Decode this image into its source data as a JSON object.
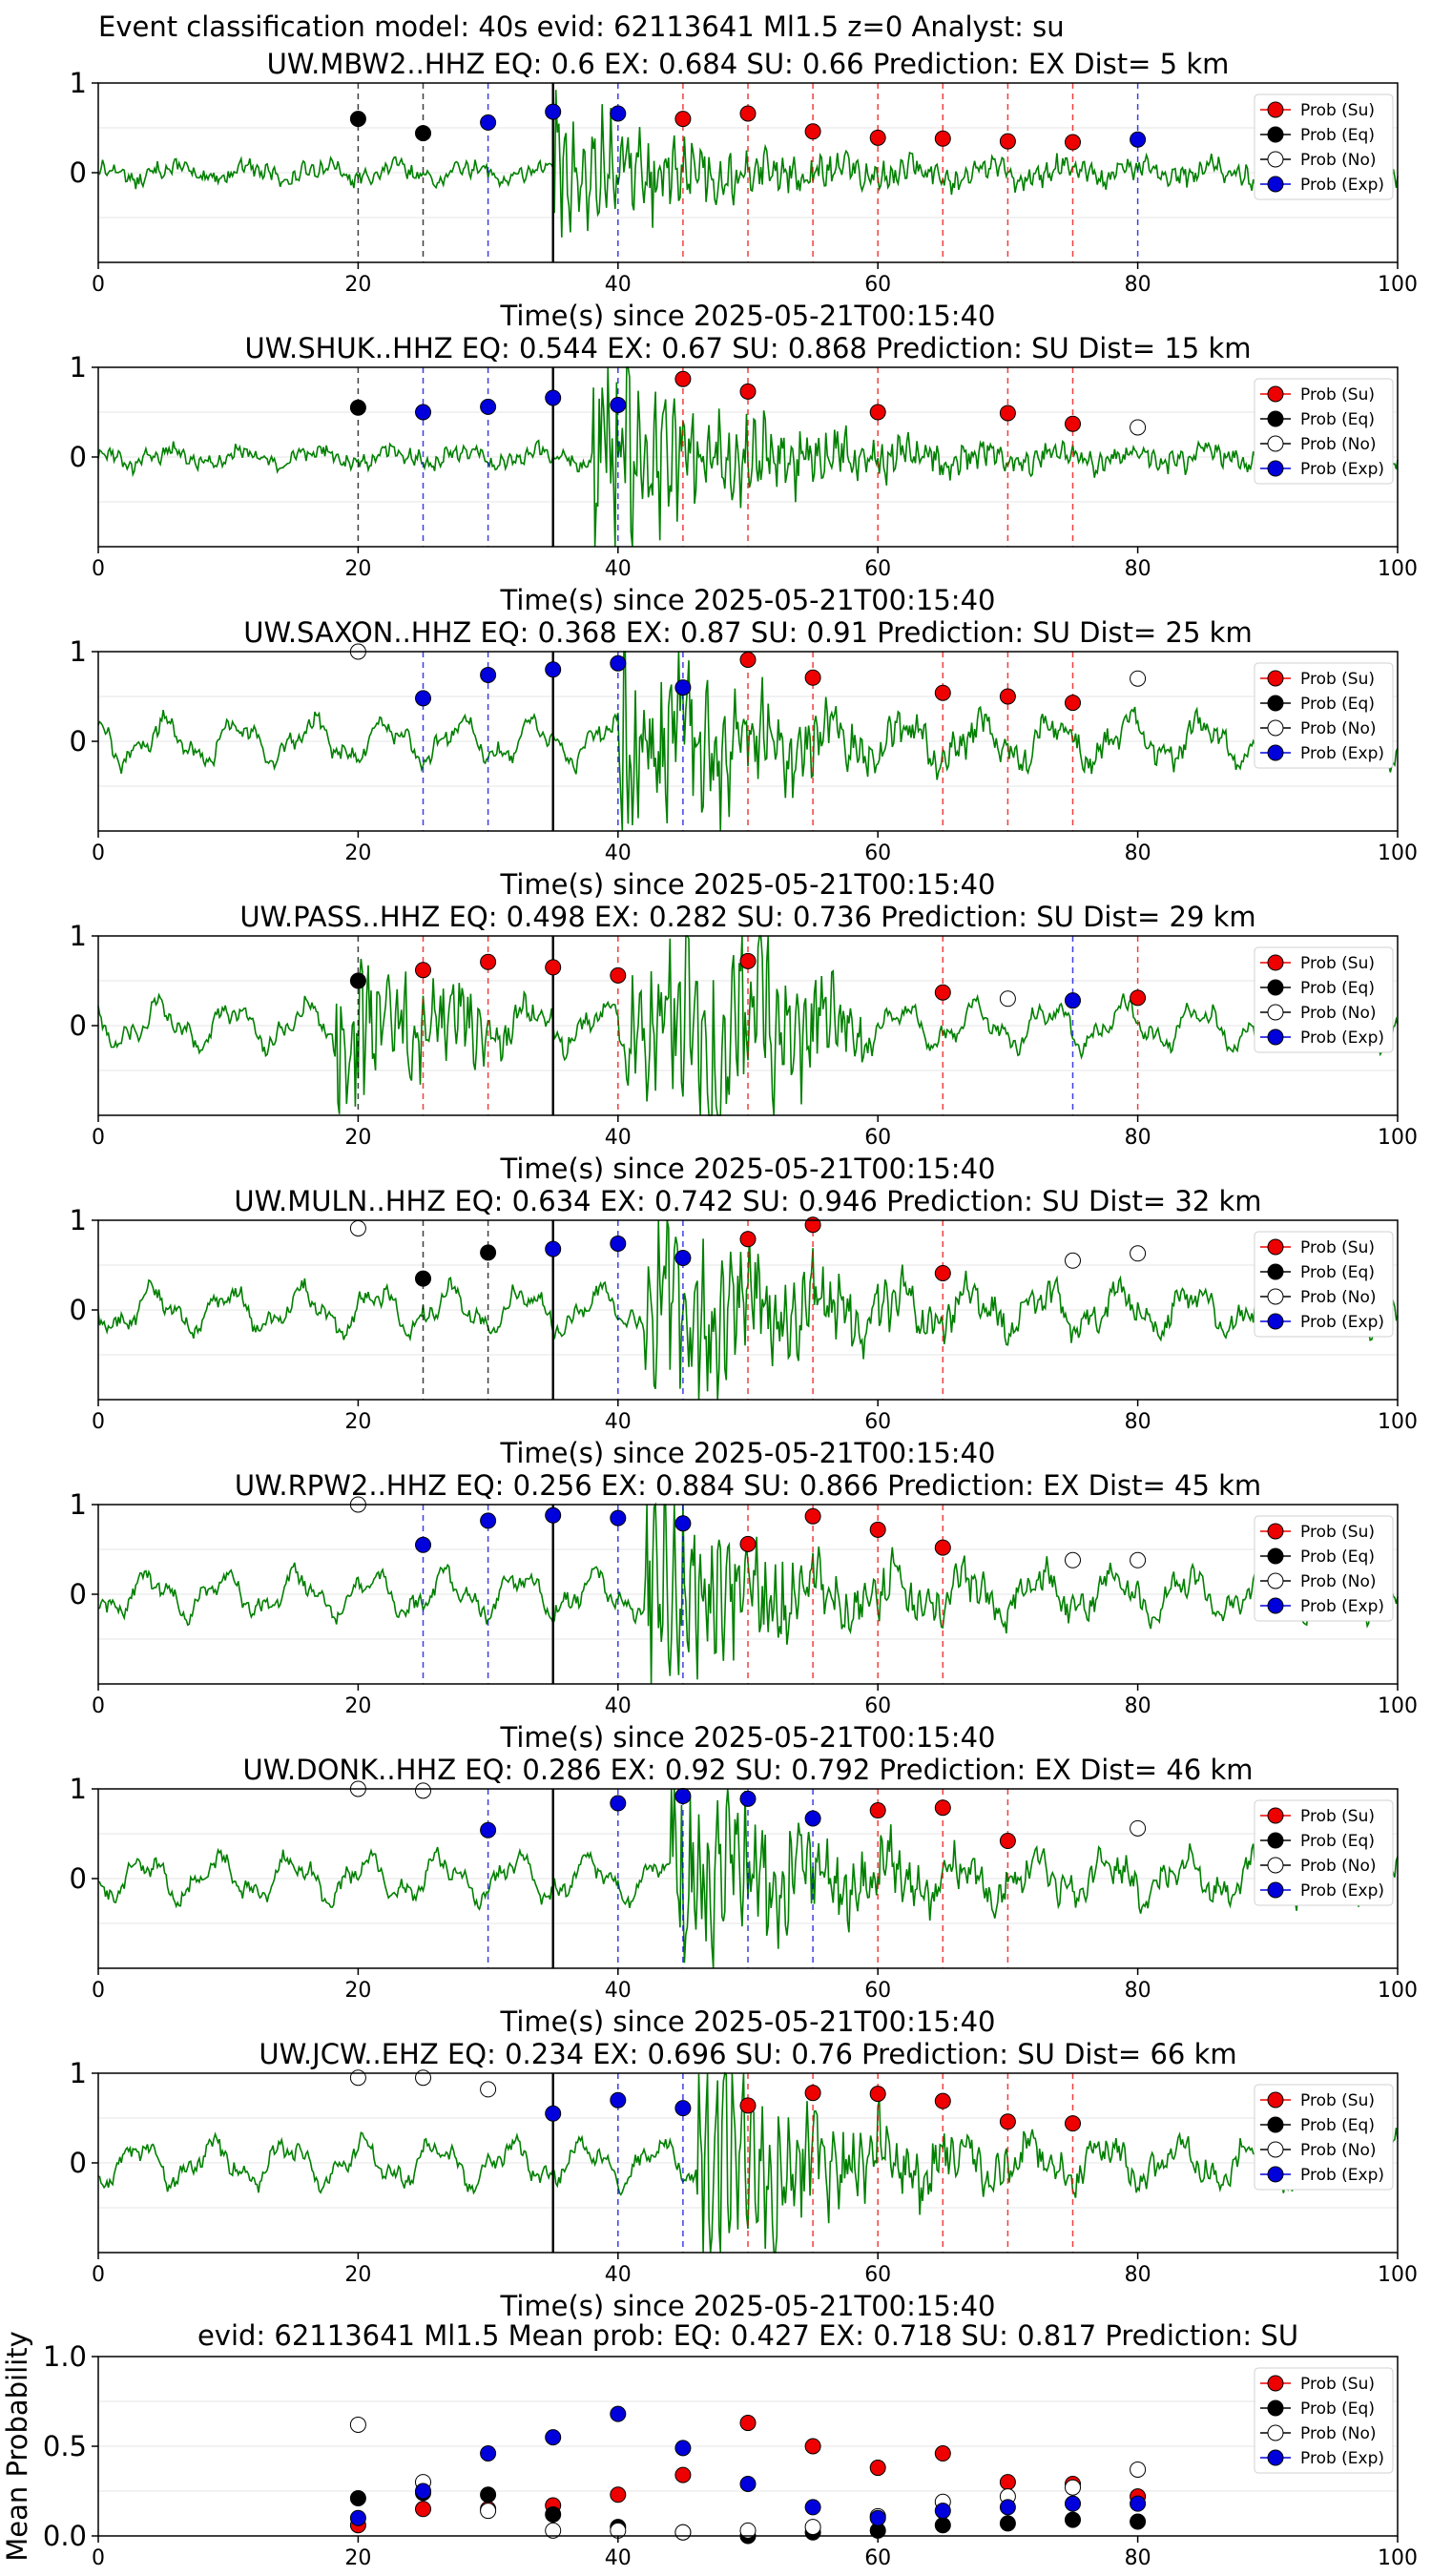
{
  "figure": {
    "title": "Event classification model: 40s evid: 62113641 Ml1.5 z=0 Analyst: su"
  },
  "legend_labels": [
    "Prob (Su)",
    "Prob (Eq)",
    "Prob (No)",
    "Prob (Exp)"
  ],
  "colors": {
    "su": "#ee0000",
    "eq": "#000000",
    "no": "#ffffff",
    "exp": "#0000dd",
    "wave": "#008000"
  },
  "chart_data": [
    {
      "type": "scatter",
      "title": "UW.MBW2..HHZ   EQ: 0.6  EX: 0.684  SU: 0.66   Prediction: EX    Dist= 5 km",
      "xlabel": "Time(s) since 2025-05-21T00:15:40",
      "xlim": [
        0,
        100
      ],
      "ylim": [
        -1,
        1
      ],
      "xticks": [
        "0",
        "20",
        "40",
        "60",
        "80",
        "100"
      ],
      "yticks": [
        "1",
        "0"
      ],
      "origin_time": 35,
      "onset": 35,
      "amp": 0.55,
      "windows": [
        {
          "t": 20,
          "cls": "eq",
          "p": 0.6
        },
        {
          "t": 25,
          "cls": "eq",
          "p": 0.44
        },
        {
          "t": 30,
          "cls": "exp",
          "p": 0.56
        },
        {
          "t": 35,
          "cls": "exp",
          "p": 0.68
        },
        {
          "t": 40,
          "cls": "exp",
          "p": 0.66
        },
        {
          "t": 45,
          "cls": "su",
          "p": 0.6
        },
        {
          "t": 50,
          "cls": "su",
          "p": 0.66
        },
        {
          "t": 55,
          "cls": "su",
          "p": 0.46
        },
        {
          "t": 60,
          "cls": "su",
          "p": 0.39
        },
        {
          "t": 65,
          "cls": "su",
          "p": 0.38
        },
        {
          "t": 70,
          "cls": "su",
          "p": 0.35
        },
        {
          "t": 75,
          "cls": "su",
          "p": 0.34
        },
        {
          "t": 80,
          "cls": "exp",
          "p": 0.37
        }
      ]
    },
    {
      "type": "scatter",
      "title": "UW.SHUK..HHZ   EQ: 0.544  EX: 0.67  SU: 0.868   Prediction: SU    Dist= 15 km",
      "xlabel": "Time(s) since 2025-05-21T00:15:40",
      "xlim": [
        0,
        100
      ],
      "ylim": [
        -1,
        1
      ],
      "xticks": [
        "0",
        "20",
        "40",
        "60",
        "80",
        "100"
      ],
      "yticks": [
        "1",
        "0"
      ],
      "origin_time": 35,
      "onset": 38,
      "amp": 0.9,
      "windows": [
        {
          "t": 20,
          "cls": "eq",
          "p": 0.55
        },
        {
          "t": 25,
          "cls": "exp",
          "p": 0.5
        },
        {
          "t": 30,
          "cls": "exp",
          "p": 0.56
        },
        {
          "t": 35,
          "cls": "exp",
          "p": 0.66
        },
        {
          "t": 40,
          "cls": "exp",
          "p": 0.58
        },
        {
          "t": 45,
          "cls": "su",
          "p": 0.87
        },
        {
          "t": 50,
          "cls": "su",
          "p": 0.73
        },
        {
          "t": 60,
          "cls": "su",
          "p": 0.5
        },
        {
          "t": 70,
          "cls": "su",
          "p": 0.49
        },
        {
          "t": 75,
          "cls": "su",
          "p": 0.37
        },
        {
          "t": 80,
          "cls": "no",
          "p": 0.33
        }
      ]
    },
    {
      "type": "scatter",
      "title": "UW.SAXON..HHZ   EQ: 0.368  EX: 0.87  SU: 0.91   Prediction: SU    Dist= 25 km",
      "xlabel": "Time(s) since 2025-05-21T00:15:40",
      "xlim": [
        0,
        100
      ],
      "ylim": [
        -1,
        1
      ],
      "xticks": [
        "0",
        "20",
        "40",
        "60",
        "80",
        "100"
      ],
      "yticks": [
        "1",
        "0"
      ],
      "origin_time": 35,
      "onset": 40,
      "amp": 0.9,
      "windows": [
        {
          "t": 20,
          "cls": "no",
          "p": 1.0
        },
        {
          "t": 25,
          "cls": "exp",
          "p": 0.48
        },
        {
          "t": 30,
          "cls": "exp",
          "p": 0.74
        },
        {
          "t": 35,
          "cls": "exp",
          "p": 0.8
        },
        {
          "t": 40,
          "cls": "exp",
          "p": 0.87
        },
        {
          "t": 45,
          "cls": "exp",
          "p": 0.6
        },
        {
          "t": 50,
          "cls": "su",
          "p": 0.91
        },
        {
          "t": 55,
          "cls": "su",
          "p": 0.71
        },
        {
          "t": 65,
          "cls": "su",
          "p": 0.54
        },
        {
          "t": 70,
          "cls": "su",
          "p": 0.5
        },
        {
          "t": 75,
          "cls": "su",
          "p": 0.43
        },
        {
          "t": 80,
          "cls": "no",
          "p": 0.7
        }
      ]
    },
    {
      "type": "scatter",
      "title": "UW.PASS..HHZ   EQ: 0.498  EX: 0.282  SU: 0.736   Prediction: SU    Dist= 29 km",
      "xlabel": "Time(s) since 2025-05-21T00:15:40",
      "xlim": [
        0,
        100
      ],
      "ylim": [
        -1,
        1
      ],
      "xticks": [
        "0",
        "20",
        "40",
        "60",
        "80",
        "100"
      ],
      "yticks": [
        "1",
        "0"
      ],
      "origin_time": 35,
      "onset": 18,
      "amp": 0.85,
      "windows": [
        {
          "t": 20,
          "cls": "eq",
          "p": 0.5
        },
        {
          "t": 25,
          "cls": "su",
          "p": 0.62
        },
        {
          "t": 30,
          "cls": "su",
          "p": 0.71
        },
        {
          "t": 35,
          "cls": "su",
          "p": 0.65
        },
        {
          "t": 40,
          "cls": "su",
          "p": 0.56
        },
        {
          "t": 50,
          "cls": "su",
          "p": 0.72
        },
        {
          "t": 65,
          "cls": "su",
          "p": 0.37
        },
        {
          "t": 70,
          "cls": "no",
          "p": 0.3
        },
        {
          "t": 75,
          "cls": "exp",
          "p": 0.28
        },
        {
          "t": 80,
          "cls": "su",
          "p": 0.31
        }
      ]
    },
    {
      "type": "scatter",
      "title": "UW.MULN..HHZ   EQ: 0.634  EX: 0.742  SU: 0.946   Prediction: SU    Dist= 32 km",
      "xlabel": "Time(s) since 2025-05-21T00:15:40",
      "xlim": [
        0,
        100
      ],
      "ylim": [
        -1,
        1
      ],
      "xticks": [
        "0",
        "20",
        "40",
        "60",
        "80",
        "100"
      ],
      "yticks": [
        "1",
        "0"
      ],
      "origin_time": 35,
      "onset": 42,
      "amp": 0.85,
      "windows": [
        {
          "t": 20,
          "cls": "no",
          "p": 0.91
        },
        {
          "t": 25,
          "cls": "eq",
          "p": 0.35
        },
        {
          "t": 30,
          "cls": "eq",
          "p": 0.64
        },
        {
          "t": 35,
          "cls": "exp",
          "p": 0.68
        },
        {
          "t": 40,
          "cls": "exp",
          "p": 0.74
        },
        {
          "t": 45,
          "cls": "exp",
          "p": 0.58
        },
        {
          "t": 50,
          "cls": "su",
          "p": 0.79
        },
        {
          "t": 55,
          "cls": "su",
          "p": 0.95
        },
        {
          "t": 65,
          "cls": "su",
          "p": 0.41
        },
        {
          "t": 75,
          "cls": "no",
          "p": 0.55
        },
        {
          "t": 80,
          "cls": "no",
          "p": 0.63
        }
      ]
    },
    {
      "type": "scatter",
      "title": "UW.RPW2..HHZ   EQ: 0.256  EX: 0.884  SU: 0.866   Prediction: EX    Dist= 45 km",
      "xlabel": "Time(s) since 2025-05-21T00:15:40",
      "xlim": [
        0,
        100
      ],
      "ylim": [
        -1,
        1
      ],
      "xticks": [
        "0",
        "20",
        "40",
        "60",
        "80",
        "100"
      ],
      "yticks": [
        "1",
        "0"
      ],
      "origin_time": 35,
      "onset": 42,
      "amp": 0.9,
      "windows": [
        {
          "t": 20,
          "cls": "no",
          "p": 1.0
        },
        {
          "t": 25,
          "cls": "exp",
          "p": 0.55
        },
        {
          "t": 30,
          "cls": "exp",
          "p": 0.82
        },
        {
          "t": 35,
          "cls": "exp",
          "p": 0.88
        },
        {
          "t": 40,
          "cls": "exp",
          "p": 0.85
        },
        {
          "t": 45,
          "cls": "exp",
          "p": 0.79
        },
        {
          "t": 50,
          "cls": "su",
          "p": 0.56
        },
        {
          "t": 55,
          "cls": "su",
          "p": 0.87
        },
        {
          "t": 60,
          "cls": "su",
          "p": 0.72
        },
        {
          "t": 65,
          "cls": "su",
          "p": 0.52
        },
        {
          "t": 75,
          "cls": "no",
          "p": 0.38
        },
        {
          "t": 80,
          "cls": "no",
          "p": 0.38
        }
      ]
    },
    {
      "type": "scatter",
      "title": "UW.DONK..HHZ   EQ: 0.286  EX: 0.92  SU: 0.792   Prediction: EX    Dist= 46 km",
      "xlabel": "Time(s) since 2025-05-21T00:15:40",
      "xlim": [
        0,
        100
      ],
      "ylim": [
        -1,
        1
      ],
      "xticks": [
        "0",
        "20",
        "40",
        "60",
        "80",
        "100"
      ],
      "yticks": [
        "1",
        "0"
      ],
      "origin_time": 35,
      "onset": 44,
      "amp": 0.85,
      "windows": [
        {
          "t": 20,
          "cls": "no",
          "p": 1.0
        },
        {
          "t": 25,
          "cls": "no",
          "p": 0.98
        },
        {
          "t": 30,
          "cls": "exp",
          "p": 0.54
        },
        {
          "t": 40,
          "cls": "exp",
          "p": 0.84
        },
        {
          "t": 45,
          "cls": "exp",
          "p": 0.92
        },
        {
          "t": 50,
          "cls": "exp",
          "p": 0.89
        },
        {
          "t": 55,
          "cls": "exp",
          "p": 0.67
        },
        {
          "t": 60,
          "cls": "su",
          "p": 0.76
        },
        {
          "t": 65,
          "cls": "su",
          "p": 0.79
        },
        {
          "t": 70,
          "cls": "su",
          "p": 0.42
        },
        {
          "t": 80,
          "cls": "no",
          "p": 0.56
        }
      ]
    },
    {
      "type": "scatter",
      "title": "UW.JCW..EHZ   EQ: 0.234  EX: 0.696  SU: 0.76   Prediction: SU    Dist= 66 km",
      "xlabel": "Time(s) since 2025-05-21T00:15:40",
      "xlim": [
        0,
        100
      ],
      "ylim": [
        -1,
        1
      ],
      "xticks": [
        "0",
        "20",
        "40",
        "60",
        "80",
        "100"
      ],
      "yticks": [
        "1",
        "0"
      ],
      "origin_time": 35,
      "onset": 46,
      "amp": 0.9,
      "windows": [
        {
          "t": 20,
          "cls": "no",
          "p": 0.95
        },
        {
          "t": 25,
          "cls": "no",
          "p": 0.95
        },
        {
          "t": 30,
          "cls": "no",
          "p": 0.82
        },
        {
          "t": 35,
          "cls": "exp",
          "p": 0.55
        },
        {
          "t": 40,
          "cls": "exp",
          "p": 0.7
        },
        {
          "t": 45,
          "cls": "exp",
          "p": 0.61
        },
        {
          "t": 50,
          "cls": "su",
          "p": 0.64
        },
        {
          "t": 55,
          "cls": "su",
          "p": 0.78
        },
        {
          "t": 60,
          "cls": "su",
          "p": 0.77
        },
        {
          "t": 65,
          "cls": "su",
          "p": 0.69
        },
        {
          "t": 70,
          "cls": "su",
          "p": 0.46
        },
        {
          "t": 75,
          "cls": "su",
          "p": 0.44
        }
      ]
    },
    {
      "type": "scatter",
      "title": "evid: 62113641  Ml1.5   Mean prob:   EQ: 0.427  EX: 0.718  SU: 0.817   Prediction: SU",
      "xlabel": "",
      "ylabel": "Mean Probability",
      "xlim": [
        0,
        100
      ],
      "ylim": [
        0,
        1
      ],
      "xticks": [
        "0",
        "20",
        "40",
        "60",
        "80",
        "100"
      ],
      "yticks": [
        "1.0",
        "0.5",
        "0.0"
      ],
      "x": [
        20,
        25,
        30,
        35,
        40,
        45,
        50,
        55,
        60,
        65,
        70,
        75,
        80
      ],
      "series": [
        {
          "name": "Prob (Su)",
          "cls": "su",
          "values": [
            0.06,
            0.15,
            0.15,
            0.17,
            0.23,
            0.34,
            0.63,
            0.5,
            0.38,
            0.46,
            0.3,
            0.29,
            0.22
          ]
        },
        {
          "name": "Prob (Eq)",
          "cls": "eq",
          "values": [
            0.21,
            0.24,
            0.23,
            0.12,
            0.05,
            0.02,
            0.0,
            0.02,
            0.03,
            0.06,
            0.07,
            0.09,
            0.08
          ]
        },
        {
          "name": "Prob (No)",
          "cls": "no",
          "values": [
            0.62,
            0.3,
            0.14,
            0.03,
            0.03,
            0.02,
            0.03,
            0.05,
            0.11,
            0.19,
            0.22,
            0.27,
            0.37
          ]
        },
        {
          "name": "Prob (Exp)",
          "cls": "exp",
          "values": [
            0.1,
            0.25,
            0.46,
            0.55,
            0.68,
            0.49,
            0.29,
            0.16,
            0.1,
            0.14,
            0.16,
            0.18,
            0.18
          ]
        }
      ]
    }
  ]
}
